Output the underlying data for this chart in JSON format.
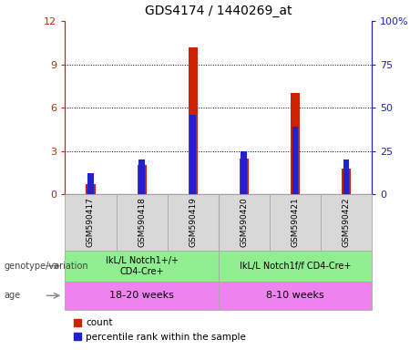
{
  "title": "GDS4174 / 1440269_at",
  "samples": [
    "GSM590417",
    "GSM590418",
    "GSM590419",
    "GSM590420",
    "GSM590421",
    "GSM590422"
  ],
  "counts": [
    0.7,
    2.0,
    10.2,
    2.5,
    7.0,
    1.8
  ],
  "percentile_ranks": [
    12.0,
    20.0,
    46.0,
    25.0,
    39.0,
    20.0
  ],
  "ylim_left": [
    0,
    12
  ],
  "ylim_right": [
    0,
    100
  ],
  "yticks_left": [
    0,
    3,
    6,
    9,
    12
  ],
  "ytick_labels_left": [
    "0",
    "3",
    "6",
    "9",
    "12"
  ],
  "yticks_right": [
    0,
    25,
    50,
    75,
    100
  ],
  "ytick_labels_right": [
    "0",
    "25",
    "50",
    "75",
    "100%"
  ],
  "genotype_groups": [
    {
      "label": "IkL/L Notch1+/+\nCD4-Cre+",
      "start": 0,
      "end": 3,
      "color": "#90ee90"
    },
    {
      "label": "IkL/L Notch1f/f CD4-Cre+",
      "start": 3,
      "end": 6,
      "color": "#90ee90"
    }
  ],
  "age_groups": [
    {
      "label": "18-20 weeks",
      "start": 0,
      "end": 3,
      "color": "#ee82ee"
    },
    {
      "label": "8-10 weeks",
      "start": 3,
      "end": 6,
      "color": "#ee82ee"
    }
  ],
  "bar_color_red": "#cc2200",
  "bar_color_blue": "#2222cc",
  "left_axis_color": "#cc2200",
  "right_axis_color": "#2222bb",
  "grid_color": "#000000",
  "bg_color": "#d8d8d8",
  "legend_count_label": "count",
  "legend_pct_label": "percentile rank within the sample"
}
